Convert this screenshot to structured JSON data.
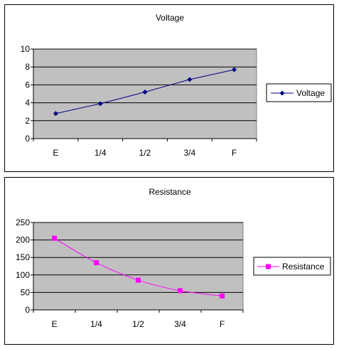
{
  "chart_data": [
    {
      "type": "line",
      "title": "Voltage",
      "categories": [
        "E",
        "1/4",
        "1/2",
        "3/4",
        "F"
      ],
      "series": [
        {
          "name": "Voltage",
          "values": [
            2.8,
            3.9,
            5.2,
            6.6,
            7.7
          ],
          "color": "#000080",
          "marker": "diamond"
        }
      ],
      "ylim": [
        0,
        10
      ],
      "yticks": [
        0,
        2,
        4,
        6,
        8,
        10
      ],
      "grid": true,
      "plot_background": "#c0c0c0",
      "legend": "right",
      "smooth": false
    },
    {
      "type": "line",
      "title": "Resistance",
      "categories": [
        "E",
        "1/4",
        "1/2",
        "3/4",
        "F"
      ],
      "series": [
        {
          "name": "Resistance",
          "values": [
            205,
            135,
            85,
            55,
            40
          ],
          "color": "#ff00ff",
          "marker": "square"
        }
      ],
      "ylim": [
        0,
        250
      ],
      "yticks": [
        0,
        50,
        100,
        150,
        200,
        250
      ],
      "grid": true,
      "plot_background": "#c0c0c0",
      "legend": "right",
      "smooth": true
    }
  ]
}
